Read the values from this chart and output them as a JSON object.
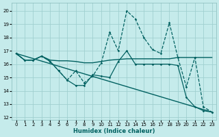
{
  "xlabel": "Humidex (Indice chaleur)",
  "bg_color": "#c5ebeb",
  "grid_color": "#a0d0d0",
  "line_color": "#006060",
  "xlim": [
    -0.5,
    23.5
  ],
  "ylim": [
    11.8,
    20.6
  ],
  "yticks": [
    12,
    13,
    14,
    15,
    16,
    17,
    18,
    19,
    20
  ],
  "xticks": [
    0,
    1,
    2,
    3,
    4,
    5,
    6,
    7,
    8,
    9,
    10,
    11,
    12,
    13,
    14,
    15,
    16,
    17,
    18,
    19,
    20,
    21,
    22,
    23
  ],
  "series": [
    {
      "x": [
        0,
        1,
        2,
        3,
        4,
        5,
        6,
        7,
        8,
        9,
        10,
        11,
        12,
        13,
        14,
        15,
        16,
        17,
        18,
        19,
        20,
        21,
        22,
        23
      ],
      "y": [
        16.8,
        16.3,
        16.3,
        16.6,
        16.3,
        16.25,
        16.25,
        16.2,
        16.1,
        16.1,
        16.2,
        16.3,
        16.35,
        16.4,
        16.4,
        16.4,
        16.4,
        16.4,
        16.4,
        16.5,
        16.5,
        16.5,
        16.5,
        16.5
      ],
      "marker": false,
      "dash": false,
      "lw": 1.0
    },
    {
      "x": [
        0,
        23
      ],
      "y": [
        16.8,
        12.4
      ],
      "marker": false,
      "dash": false,
      "lw": 1.0
    },
    {
      "x": [
        0,
        1,
        2,
        3,
        4,
        5,
        6,
        7,
        8,
        9,
        10,
        11,
        12,
        13,
        14,
        15,
        16,
        17,
        18,
        19,
        20,
        21,
        22,
        23
      ],
      "y": [
        16.8,
        16.3,
        16.3,
        16.6,
        16.2,
        15.5,
        14.8,
        15.5,
        14.6,
        15.1,
        16.1,
        18.4,
        17.0,
        20.0,
        19.4,
        18.0,
        17.1,
        16.8,
        19.1,
        16.5,
        14.3,
        16.5,
        12.8,
        12.4
      ],
      "marker": true,
      "dash": true,
      "lw": 0.9
    },
    {
      "x": [
        0,
        1,
        2,
        3,
        4,
        5,
        6,
        7,
        8,
        9,
        10,
        11,
        12,
        13,
        14,
        15,
        16,
        17,
        18,
        19,
        20,
        21,
        22,
        23
      ],
      "y": [
        16.8,
        16.3,
        16.3,
        16.6,
        16.2,
        15.5,
        14.8,
        14.4,
        14.4,
        15.2,
        15.1,
        15.0,
        16.2,
        17.0,
        16.0,
        16.0,
        16.0,
        16.0,
        16.0,
        15.9,
        13.5,
        12.8,
        12.5,
        12.4
      ],
      "marker": true,
      "dash": false,
      "lw": 0.9
    }
  ]
}
